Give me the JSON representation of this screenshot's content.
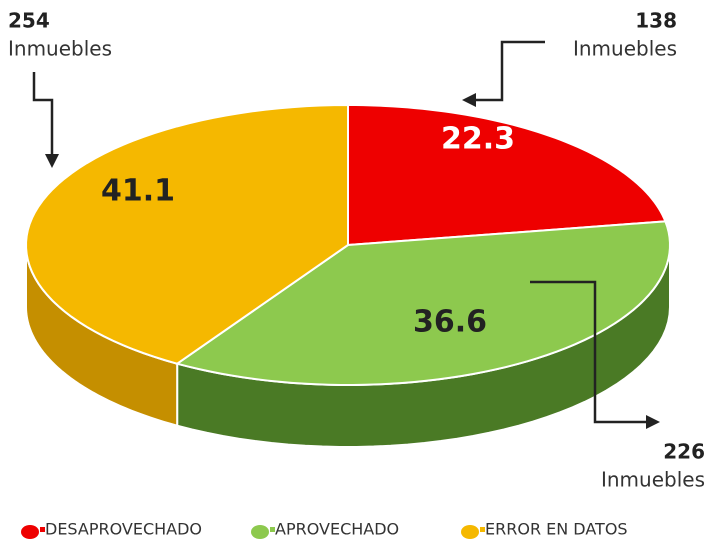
{
  "chart_data": {
    "type": "pie",
    "categories": [
      "DESAPROVECHADO",
      "APROVECHADO",
      "ERROR EN DATOS"
    ],
    "values": [
      22.3,
      36.6,
      41.1
    ],
    "colors": [
      "#ee0000",
      "#8dc94e",
      "#f5b800"
    ],
    "side_colors": [
      "#a80000",
      "#4a7a25",
      "#c58f00"
    ],
    "counts": [
      138,
      226,
      254
    ],
    "count_labels": [
      "Inmuebles",
      "Inmuebles",
      "Inmuebles"
    ],
    "legend": "bottom"
  }
}
